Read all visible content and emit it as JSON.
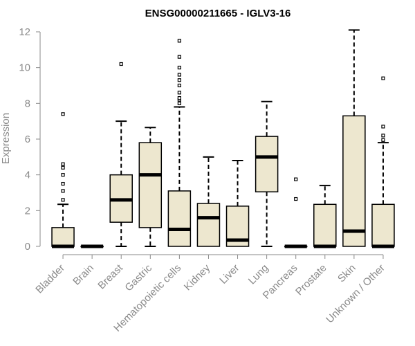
{
  "chart_data": {
    "type": "boxplot",
    "title": "ENSG00000211665 - IGLV3-16",
    "xlabel": "",
    "ylabel": "Expression",
    "ylim": [
      0,
      12
    ],
    "yticks": [
      0,
      2,
      4,
      6,
      8,
      10,
      12
    ],
    "grid": false,
    "colors": {
      "box_fill": "#ede7cf",
      "box_stroke": "#000000",
      "axis": "#8a8a8a",
      "title": "#000000"
    },
    "categories": [
      "Bladder",
      "Brain",
      "Breast",
      "Gastric",
      "Hematopoietic cells",
      "Kidney",
      "Liver",
      "Lung",
      "Pancreas",
      "Prostate",
      "Skin",
      "Unknown / Other"
    ],
    "boxes": [
      {
        "category": "Bladder",
        "min": 0,
        "q1": 0,
        "median": 0,
        "q3": 1.05,
        "max": 2.35,
        "outliers": [
          2.6,
          3.1,
          3.5,
          4.0,
          4.4,
          4.6,
          7.4
        ]
      },
      {
        "category": "Brain",
        "min": 0,
        "q1": 0,
        "median": 0,
        "q3": 0,
        "max": 0,
        "outliers": []
      },
      {
        "category": "Breast",
        "min": 0,
        "q1": 1.35,
        "median": 2.6,
        "q3": 4.0,
        "max": 7.0,
        "outliers": [
          10.2
        ]
      },
      {
        "category": "Gastric",
        "min": 0,
        "q1": 1.05,
        "median": 4.0,
        "q3": 5.8,
        "max": 6.65,
        "outliers": []
      },
      {
        "category": "Hematopoietic cells",
        "min": 0,
        "q1": 0,
        "median": 0.95,
        "q3": 3.1,
        "max": 7.8,
        "outliers": [
          8.0,
          8.2,
          8.3,
          8.6,
          9.0,
          9.3,
          9.6,
          10.0,
          10.6,
          11.5
        ]
      },
      {
        "category": "Kidney",
        "min": 0,
        "q1": 0,
        "median": 1.6,
        "q3": 2.4,
        "max": 5.0,
        "outliers": []
      },
      {
        "category": "Liver",
        "min": 0,
        "q1": 0,
        "median": 0.35,
        "q3": 2.25,
        "max": 4.8,
        "outliers": []
      },
      {
        "category": "Lung",
        "min": 0,
        "q1": 3.05,
        "median": 5.0,
        "q3": 6.15,
        "max": 8.1,
        "outliers": []
      },
      {
        "category": "Pancreas",
        "min": 0,
        "q1": 0,
        "median": 0,
        "q3": 0,
        "max": 0,
        "outliers": [
          2.65,
          3.75
        ]
      },
      {
        "category": "Prostate",
        "min": 0,
        "q1": 0,
        "median": 0,
        "q3": 2.35,
        "max": 3.4,
        "outliers": []
      },
      {
        "category": "Skin",
        "min": 0,
        "q1": 0,
        "median": 0.85,
        "q3": 7.3,
        "max": 12.1,
        "outliers": []
      },
      {
        "category": "Unknown / Other",
        "min": 0,
        "q1": 0,
        "median": 0,
        "q3": 2.35,
        "max": 5.8,
        "outliers": [
          5.95,
          6.2,
          6.7,
          9.4
        ]
      }
    ]
  }
}
